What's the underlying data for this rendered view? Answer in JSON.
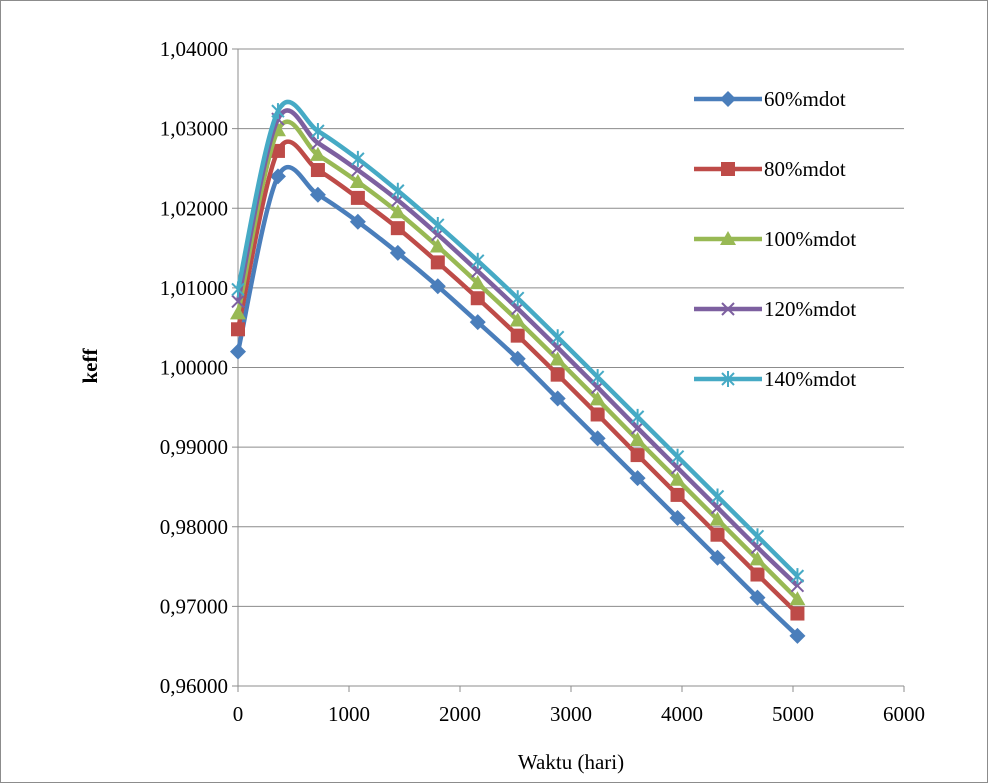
{
  "chart_data": {
    "type": "line",
    "title": "",
    "xlabel": "Waktu (hari)",
    "ylabel": "keff",
    "xlim": [
      0,
      6000
    ],
    "ylim": [
      0.96,
      1.04
    ],
    "x_ticks": [
      0,
      1000,
      2000,
      3000,
      4000,
      5000,
      6000
    ],
    "x_tick_labels": [
      "0",
      "1000",
      "2000",
      "3000",
      "4000",
      "5000",
      "6000"
    ],
    "y_ticks": [
      0.96,
      0.97,
      0.98,
      0.99,
      1.0,
      1.01,
      1.02,
      1.03,
      1.04
    ],
    "y_tick_labels": [
      "0,96000",
      "0,97000",
      "0,98000",
      "0,99000",
      "1,00000",
      "1,01000",
      "1,02000",
      "1,03000",
      "1,04000"
    ],
    "grid": "horizontal major",
    "legend_position": "right",
    "x": [
      0,
      360,
      720,
      1080,
      1440,
      1800,
      2160,
      2520,
      2880,
      3240,
      3600,
      3960,
      4320,
      4680,
      5040
    ],
    "series": [
      {
        "name": "60%mdot",
        "color": "#4a7ebb",
        "marker": "diamond",
        "values": [
          1.002,
          1.024,
          1.0217,
          1.0183,
          1.0144,
          1.0102,
          1.0057,
          1.0011,
          0.9961,
          0.9911,
          0.9861,
          0.9811,
          0.9761,
          0.9711,
          0.9663
        ]
      },
      {
        "name": "80%mdot",
        "color": "#be4b48",
        "marker": "square",
        "values": [
          1.0048,
          1.0272,
          1.0248,
          1.0213,
          1.0175,
          1.0132,
          1.0087,
          1.004,
          0.9991,
          0.9941,
          0.989,
          0.984,
          0.979,
          0.974,
          0.9691
        ]
      },
      {
        "name": "100%mdot",
        "color": "#98b954",
        "marker": "triangle",
        "values": [
          1.0068,
          1.0298,
          1.0267,
          1.0233,
          1.0195,
          1.0152,
          1.0106,
          1.0059,
          1.001,
          0.996,
          0.9909,
          0.9859,
          0.9809,
          0.9759,
          0.9709
        ]
      },
      {
        "name": "120%mdot",
        "color": "#7d60a0",
        "marker": "x",
        "values": [
          1.0083,
          1.0312,
          1.0282,
          1.0248,
          1.021,
          1.0167,
          1.0121,
          1.0074,
          1.0025,
          0.9975,
          0.9924,
          0.9874,
          0.9824,
          0.9774,
          0.9726
        ]
      },
      {
        "name": "140%mdot",
        "color": "#46aac5",
        "marker": "star",
        "values": [
          1.0098,
          1.0322,
          1.0297,
          1.0262,
          1.0222,
          1.0179,
          1.0134,
          1.0087,
          1.0038,
          0.9988,
          0.9938,
          0.9888,
          0.9838,
          0.9788,
          0.9738
        ]
      }
    ]
  }
}
